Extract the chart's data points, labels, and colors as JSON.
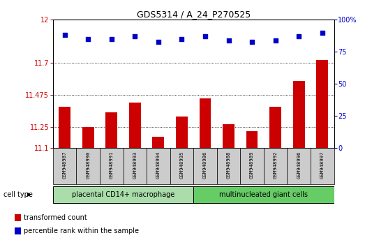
{
  "title": "GDS5314 / A_24_P270525",
  "samples": [
    "GSM948987",
    "GSM948990",
    "GSM948991",
    "GSM948993",
    "GSM948994",
    "GSM948995",
    "GSM948986",
    "GSM948988",
    "GSM948989",
    "GSM948992",
    "GSM948996",
    "GSM948997"
  ],
  "transformed_counts": [
    11.39,
    11.25,
    11.35,
    11.42,
    11.18,
    11.32,
    11.45,
    11.27,
    11.22,
    11.39,
    11.57,
    11.72
  ],
  "percentile_ranks": [
    88,
    85,
    85,
    87,
    83,
    85,
    87,
    84,
    83,
    84,
    87,
    90
  ],
  "groups": [
    {
      "label": "placental CD14+ macrophage",
      "start": 0,
      "end": 6,
      "color": "#aaddaa"
    },
    {
      "label": "multinucleated giant cells",
      "start": 6,
      "end": 12,
      "color": "#66cc66"
    }
  ],
  "ylim_left": [
    11.1,
    12.0
  ],
  "ylim_right": [
    0,
    100
  ],
  "yticks_left": [
    11.1,
    11.25,
    11.475,
    11.7,
    12
  ],
  "ytick_labels_left": [
    "11.1",
    "11.25",
    "11.475",
    "11.7",
    "12"
  ],
  "yticks_right": [
    0,
    25,
    50,
    75,
    100
  ],
  "ytick_labels_right": [
    "0",
    "25",
    "50",
    "75",
    "100%"
  ],
  "bar_color": "#cc0000",
  "dot_color": "#0000cc",
  "legend_bar_label": "transformed count",
  "legend_dot_label": "percentile rank within the sample",
  "cell_type_label": "cell type",
  "bg_color": "#ffffff",
  "sample_box_color": "#cccccc"
}
